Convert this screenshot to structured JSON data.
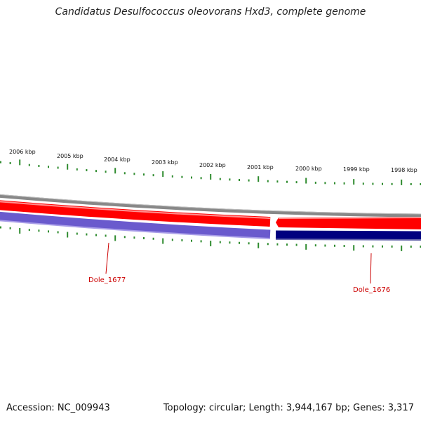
{
  "title": "Candidatus Desulfococcus oleovorans Hxd3, complete genome",
  "ruler": {
    "labels": [
      "2006 kbp",
      "2005 kbp",
      "2004 kbp",
      "2003 kbp",
      "2002 kbp",
      "2001 kbp",
      "2000 kbp",
      "1999 kbp",
      "1998 kbp"
    ],
    "tick_color": "#2e8b2e"
  },
  "tracks": {
    "backbone_color": "#888888",
    "forward_color": "#ff0000",
    "reverse_color_1": "#6a5acd",
    "reverse_color_2": "#00007f"
  },
  "features": [
    {
      "label": "Dole_1677",
      "strand": "reverse",
      "color": "#6a5acd"
    },
    {
      "label": "Dole_1676",
      "strand": "reverse",
      "color": "#00007f"
    }
  ],
  "label_color": "#cc0000",
  "footer": {
    "accession": "Accession: NC_009943",
    "summary": "Topology: circular; Length: 3,944,167 bp; Genes: 3,317"
  }
}
